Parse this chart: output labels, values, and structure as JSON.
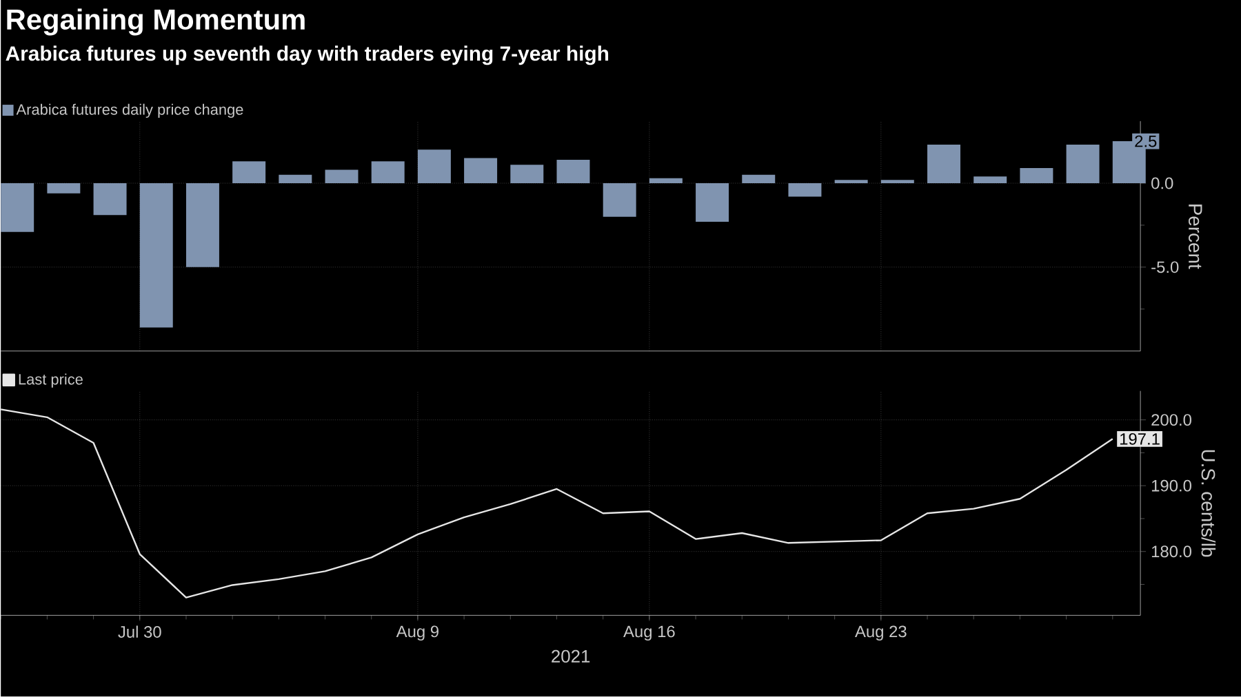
{
  "chart_data": [
    {
      "type": "bar",
      "title": "Regaining Momentum",
      "subtitle": "Arabica futures up seventh day with traders eying 7-year high",
      "ylabel": "Percent",
      "categories": [
        null,
        null,
        null,
        null,
        null,
        null,
        null,
        null,
        null,
        null,
        null,
        null,
        null,
        null,
        null,
        null,
        null,
        null,
        null,
        null,
        null,
        null,
        null,
        null,
        null
      ],
      "series": [
        {
          "name": "Arabica futures daily price change",
          "color": "#8094b0",
          "values": [
            -2.9,
            -0.6,
            -1.9,
            -8.6,
            -5.0,
            1.3,
            0.5,
            0.8,
            1.3,
            2.0,
            1.5,
            1.1,
            1.4,
            -2.0,
            0.3,
            -2.3,
            0.5,
            -0.8,
            0.2,
            0.2,
            2.3,
            0.4,
            0.9,
            2.3,
            2.5
          ],
          "value_labels": [
            null,
            null,
            null,
            null,
            null,
            null,
            null,
            null,
            null,
            null,
            null,
            null,
            null,
            null,
            null,
            null,
            null,
            null,
            null,
            null,
            null,
            null,
            null,
            null,
            "2.5"
          ]
        }
      ],
      "ylim": [
        -10,
        3.7
      ],
      "yticks": [
        {
          "value": -7.5,
          "label": null
        },
        {
          "value": -5,
          "label": "-5.0"
        },
        {
          "value": -2.5,
          "label": null
        },
        {
          "value": 0,
          "label": "0.0"
        }
      ],
      "grid": true,
      "legend": "top left",
      "tick_labels": "y"
    },
    {
      "type": "line",
      "xlabel": "2021",
      "ylabel": "U.S. cents/lb",
      "categories": [
        null,
        null,
        null,
        "Jul 30",
        null,
        null,
        null,
        null,
        null,
        "Aug 9",
        null,
        null,
        null,
        null,
        "Aug 16",
        null,
        null,
        null,
        null,
        "Aug 23",
        null,
        null,
        null,
        null,
        null
      ],
      "series": [
        {
          "name": "Last price",
          "color": "#e6e6e6",
          "values": [
            201.6,
            200.4,
            196.5,
            179.6,
            173.0,
            174.9,
            175.8,
            177.0,
            179.1,
            182.6,
            185.2,
            187.2,
            189.5,
            185.8,
            186.1,
            181.9,
            182.8,
            181.3,
            181.5,
            181.7,
            185.8,
            186.5,
            188.0,
            192.4,
            197.1
          ],
          "value_labels": [
            null,
            null,
            null,
            null,
            null,
            null,
            null,
            null,
            null,
            null,
            null,
            null,
            null,
            null,
            null,
            null,
            null,
            null,
            null,
            null,
            null,
            null,
            null,
            null,
            "197.1"
          ]
        }
      ],
      "ylim": [
        170.3,
        204.4
      ],
      "yticks": [
        {
          "value": 175,
          "label": null
        },
        {
          "value": 180,
          "label": "180.0"
        },
        {
          "value": 185,
          "label": null
        },
        {
          "value": 190,
          "label": "190.0"
        },
        {
          "value": 195,
          "label": null
        },
        {
          "value": 200,
          "label": "200.0"
        }
      ],
      "grid": true,
      "legend": "top left"
    }
  ]
}
